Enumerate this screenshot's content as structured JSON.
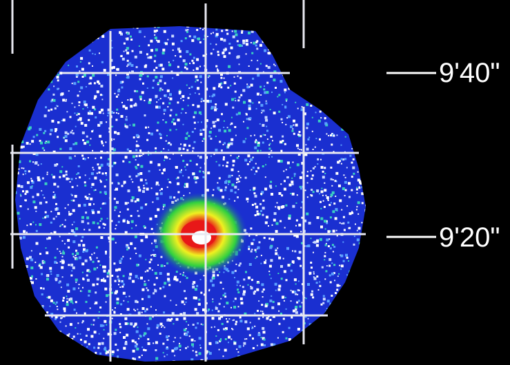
{
  "image": {
    "description_free": true,
    "colors": {
      "background": "#000000",
      "field": "#1a2fd0",
      "speckle": "#ffffff",
      "grid": "#e8e8f0",
      "core_green": "#30d040",
      "core_yellow": "#f0f020",
      "core_red": "#e81818"
    }
  },
  "coordinates": {
    "dec_labels": [
      "9'40\"",
      "9'20\""
    ]
  }
}
